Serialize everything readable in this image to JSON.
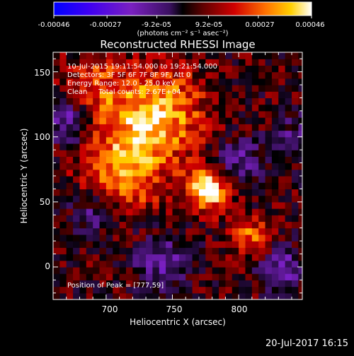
{
  "colorbar": {
    "ticks": [
      "-0.00046",
      "-0.00027",
      "-9.2e-05",
      "9.2e-05",
      "0.00027",
      "0.00046"
    ],
    "unit_label": "(photons cm⁻² s⁻¹ asec⁻²)"
  },
  "chart_data": {
    "type": "heatmap",
    "title": "Reconstructed RHESSI Image",
    "xlabel": "Heliocentric X (arcsec)",
    "ylabel": "Heliocentric Y (arcsec)",
    "xlim": [
      660,
      848
    ],
    "ylim": [
      -25,
      165
    ],
    "x_ticks": [
      700,
      750,
      800
    ],
    "y_ticks": [
      0,
      50,
      100,
      150
    ],
    "annotations": [
      "10-Jul-2015 19:11:54.000 to 19:21:54.000",
      "Detectors: 3F 5F 6F 7F 8F 9F, Att 0",
      "Energy Range: 12.0 - 25.0 keV",
      "Clean     Total counts: 2.67E+04"
    ],
    "peak_label": "Position of Peak = [777,59]",
    "peak": [
      777,
      59
    ],
    "colorbar_range": [
      -0.00046,
      0.00046
    ],
    "secondary_sources": [
      {
        "x": 720,
        "y": 100
      },
      {
        "x": 712,
        "y": 70
      },
      {
        "x": 810,
        "y": 20
      },
      {
        "x": 745,
        "y": 130
      }
    ],
    "negative_regions": [
      {
        "x": 675,
        "y": 110
      },
      {
        "x": 740,
        "y": 5
      },
      {
        "x": 695,
        "y": 50
      },
      {
        "x": 800,
        "y": 80
      },
      {
        "x": 835,
        "y": 0
      }
    ]
  },
  "footer_date": "20-Jul-2017 16:15"
}
